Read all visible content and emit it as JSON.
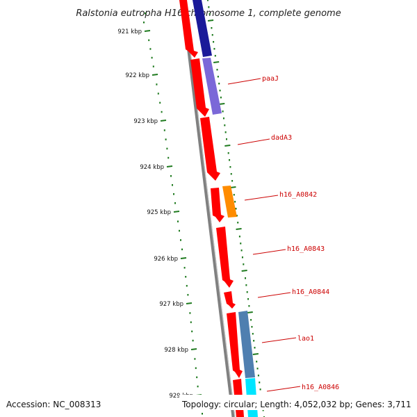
{
  "title": "Ralstonia eutropha H16 chromosome 1, complete genome",
  "footer": {
    "accession": "Accession: NC_008313",
    "summary": "Topology: circular; Length: 4,052,032 bp; Genes: 3,711"
  },
  "ruler": {
    "labels": [
      "921 kbp",
      "922 kbp",
      "923 kbp",
      "924 kbp",
      "925 kbp",
      "926 kbp",
      "927 kbp",
      "928 kbp",
      "929 kbp"
    ],
    "color": "#1e7a1e"
  },
  "colors": {
    "backbone": "#808080",
    "cds_reverse": "#ff0000",
    "cds_forward_dark_blue": "#1a1a99",
    "cds_forward_purple": "#7b68d8",
    "cds_forward_orange": "#ff8c00",
    "cds_forward_steel": "#4f7fb0",
    "cds_forward_cyan": "#00e5ff",
    "label": "#cc0000"
  },
  "gene_labels": [
    "paaJ",
    "dadA3",
    "h16_A0842",
    "h16_A0843",
    "h16_A0844",
    "lao1",
    "h16_A0846"
  ]
}
